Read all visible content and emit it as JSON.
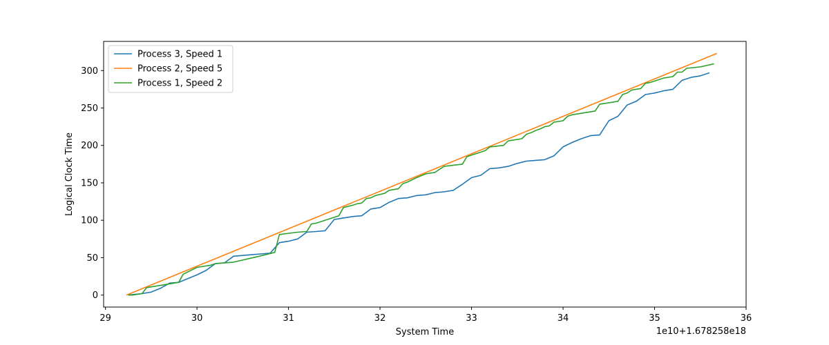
{
  "chart_data": {
    "type": "line",
    "title": "",
    "xlabel": "System Time",
    "ylabel": "Logical Clock Time",
    "offset_label": "1e10+1.678258e18",
    "xlim": [
      28.98,
      36.0
    ],
    "ylim": [
      -16,
      339
    ],
    "xticks": [
      29,
      30,
      31,
      32,
      33,
      34,
      35,
      36
    ],
    "yticks": [
      0,
      50,
      100,
      150,
      200,
      250,
      300
    ],
    "grid": false,
    "legend_position": "top-left",
    "series": [
      {
        "name": "Process 3, Speed 1",
        "color": "#1f77b4",
        "x": [
          29.25,
          29.4,
          29.5,
          29.6,
          29.7,
          29.8,
          29.9,
          30.0,
          30.1,
          30.2,
          30.3,
          30.4,
          30.5,
          30.6,
          30.7,
          30.8,
          30.9,
          31.0,
          31.1,
          31.2,
          31.3,
          31.4,
          31.5,
          31.6,
          31.7,
          31.8,
          31.9,
          32.0,
          32.1,
          32.2,
          32.3,
          32.4,
          32.5,
          32.6,
          32.7,
          32.8,
          32.9,
          33.0,
          33.1,
          33.2,
          33.3,
          33.4,
          33.5,
          33.6,
          33.7,
          33.8,
          33.9,
          34.0,
          34.1,
          34.2,
          34.3,
          34.4,
          34.5,
          34.6,
          34.7,
          34.8,
          34.9,
          35.0,
          35.1,
          35.2,
          35.3,
          35.4,
          35.5,
          35.6
        ],
        "y": [
          0,
          2,
          4,
          9,
          16,
          17,
          22,
          27,
          33,
          42,
          43,
          52,
          53,
          54,
          55,
          56,
          70,
          72,
          75,
          84,
          85,
          86,
          101,
          103,
          105,
          106,
          115,
          117,
          124,
          129,
          130,
          133,
          134,
          137,
          138,
          140,
          148,
          157,
          160,
          169,
          170,
          172,
          176,
          179,
          180,
          181,
          186,
          198,
          204,
          209,
          213,
          214,
          233,
          239,
          254,
          259,
          268,
          270,
          273,
          275,
          287,
          291,
          293,
          297
        ]
      },
      {
        "name": "Process 2, Speed 5",
        "color": "#ff7f0e",
        "x": [
          29.23,
          35.68
        ],
        "y": [
          0,
          323
        ]
      },
      {
        "name": "Process 1, Speed 2",
        "color": "#2ca02c",
        "x": [
          29.25,
          29.3,
          29.4,
          29.45,
          29.7,
          29.8,
          29.85,
          30.0,
          30.15,
          30.2,
          30.4,
          30.65,
          30.85,
          30.9,
          31.1,
          31.2,
          31.25,
          31.3,
          31.55,
          31.6,
          31.7,
          31.75,
          31.8,
          31.85,
          31.9,
          31.95,
          32.05,
          32.1,
          32.2,
          32.25,
          32.3,
          32.4,
          32.5,
          32.6,
          32.7,
          32.9,
          32.95,
          33.0,
          33.1,
          33.15,
          33.2,
          33.35,
          33.4,
          33.55,
          33.6,
          33.65,
          33.7,
          33.75,
          33.8,
          33.85,
          33.9,
          34.0,
          34.05,
          34.1,
          34.35,
          34.4,
          34.6,
          34.65,
          34.7,
          34.75,
          34.85,
          34.9,
          34.95,
          35.05,
          35.1,
          35.2,
          35.25,
          35.3,
          35.35,
          35.5,
          35.65
        ],
        "y": [
          0,
          0,
          2,
          10,
          15,
          17,
          28,
          37,
          40,
          42,
          44,
          51,
          57,
          81,
          84,
          85,
          95,
          96,
          106,
          117,
          120,
          122,
          123,
          129,
          130,
          133,
          136,
          140,
          142,
          149,
          151,
          157,
          162,
          164,
          172,
          175,
          185,
          187,
          191,
          193,
          198,
          200,
          206,
          209,
          215,
          217,
          220,
          222,
          225,
          226,
          231,
          233,
          239,
          241,
          246,
          255,
          259,
          268,
          270,
          274,
          276,
          283,
          284,
          288,
          290,
          292,
          298,
          298,
          303,
          305,
          309
        ]
      }
    ]
  }
}
